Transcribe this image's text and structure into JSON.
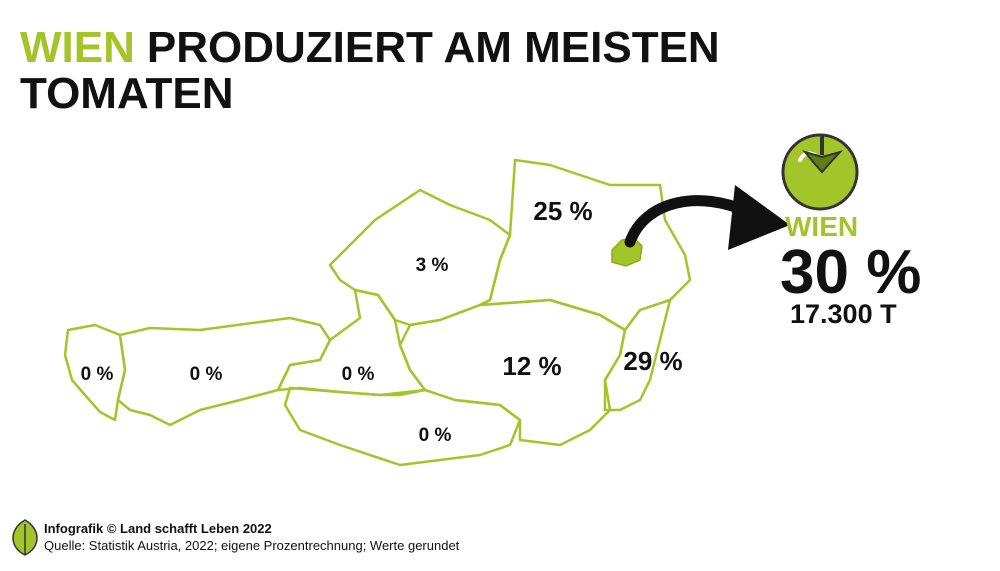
{
  "header": {
    "title_highlight": "WIEN",
    "title_line1": "PRODUZIERT AM MEISTEN",
    "title_line2": "TOMATEN"
  },
  "regions": [
    {
      "label": "0 %"
    },
    {
      "label": "0 %"
    },
    {
      "label": "0 %"
    },
    {
      "label": "0 %"
    },
    {
      "label": "3 %"
    },
    {
      "label": "12 %"
    },
    {
      "label": "25 %"
    },
    {
      "label": "29 %"
    }
  ],
  "callout": {
    "name": "WIEN",
    "share": "30 %",
    "amount": "17.300 T"
  },
  "footer": {
    "credit": "Infografik © Land schafft Leben 2022",
    "source": "Quelle: Statistik Austria, 2022; eigene Prozentrechnung; Werte gerundet"
  }
}
